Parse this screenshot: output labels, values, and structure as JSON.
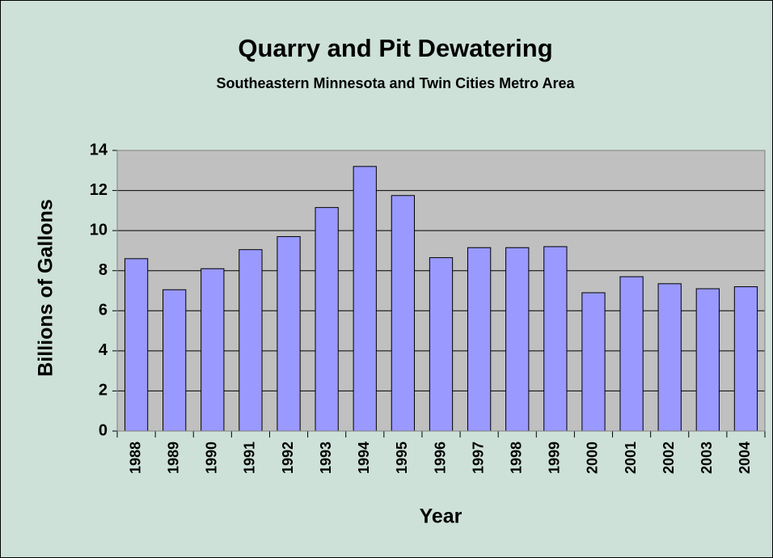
{
  "chart_data": {
    "type": "bar",
    "title": "Quarry and Pit Dewatering",
    "subtitle": "Southeastern Minnesota and Twin Cities Metro Area",
    "x_label": "Year",
    "y_label": "Billions of Gallons",
    "categories": [
      "1988",
      "1989",
      "1990",
      "1991",
      "1992",
      "1993",
      "1994",
      "1995",
      "1996",
      "1997",
      "1998",
      "1999",
      "2000",
      "2001",
      "2002",
      "2003",
      "2004"
    ],
    "values": [
      8.6,
      7.05,
      8.1,
      9.05,
      9.7,
      11.15,
      13.2,
      11.75,
      8.65,
      9.15,
      9.15,
      9.2,
      6.9,
      7.7,
      7.35,
      7.1,
      7.2
    ],
    "color": "#9999ff",
    "ylim": [
      0,
      14
    ],
    "yticks": [
      0,
      2,
      4,
      6,
      8,
      10,
      12,
      14
    ],
    "grid": true
  }
}
